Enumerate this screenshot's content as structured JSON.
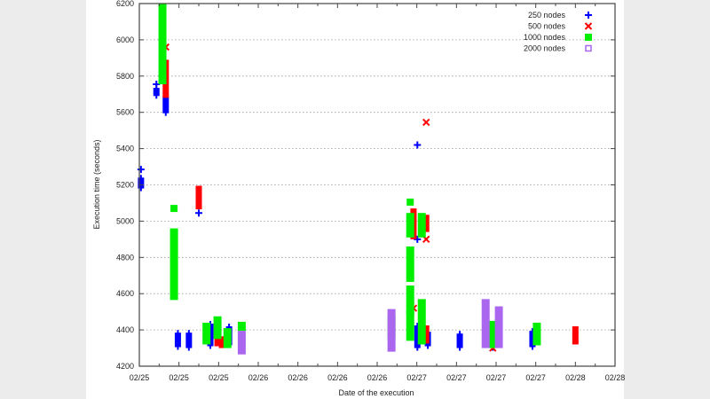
{
  "chart_data": {
    "type": "scatter",
    "title": "",
    "xlabel": "Date of the execution",
    "ylabel": "Execution time (seconds)",
    "xlim": [
      "02/25 06:00",
      "02/28 06:00"
    ],
    "ylim": [
      4200,
      6200
    ],
    "x_tick_step_hours": 6,
    "x_tick_labels": [
      "02/25",
      "02/25",
      "02/25",
      "02/26",
      "02/26",
      "02/26",
      "02/26",
      "02/27",
      "02/27",
      "02/27",
      "02/27",
      "02/28",
      "02/28"
    ],
    "y_ticks": [
      4200,
      4400,
      4600,
      4800,
      5000,
      5200,
      5400,
      5600,
      5800,
      6000,
      6200
    ],
    "grid": "horizontal dotted",
    "legend_position": "top-right",
    "series": [
      {
        "name": "250 nodes",
        "color": "#0000ff",
        "marker": "plus",
        "points": [
          {
            "x": "02/25 06:15",
            "y": 5285
          },
          {
            "x": "02/25 06:15",
            "y_min": 5180,
            "y_max": 5240
          },
          {
            "x": "02/25 08:35",
            "y": 5755
          },
          {
            "x": "02/25 08:35",
            "y_min": 5690,
            "y_max": 5735
          },
          {
            "x": "02/25 10:00",
            "y_min": 5595,
            "y_max": 5690
          },
          {
            "x": "02/25 11:50",
            "y_min": 4305,
            "y_max": 4385
          },
          {
            "x": "02/25 13:30",
            "y_min": 4300,
            "y_max": 4385
          },
          {
            "x": "02/25 15:00",
            "y": 5045
          },
          {
            "x": "02/25 16:45",
            "y_min": 4310,
            "y_max": 4435
          },
          {
            "x": "02/25 19:35",
            "y_min": 4315,
            "y_max": 4420
          },
          {
            "x": "02/27 00:05",
            "y": 5420
          },
          {
            "x": "02/27 00:05",
            "y": 4900
          },
          {
            "x": "02/27 00:05",
            "y_min": 4300,
            "y_max": 4425
          },
          {
            "x": "02/27 01:40",
            "y_min": 4310,
            "y_max": 4390
          },
          {
            "x": "02/27 06:30",
            "y_min": 4300,
            "y_max": 4380
          },
          {
            "x": "02/27 11:30",
            "y_min": 4300,
            "y_max": 4375
          },
          {
            "x": "02/27 17:30",
            "y_min": 4305,
            "y_max": 4395
          }
        ]
      },
      {
        "name": "500 nodes",
        "color": "#ff0000",
        "marker": "cross",
        "points": [
          {
            "x": "02/25 10:00",
            "y": 5960
          },
          {
            "x": "02/25 10:00",
            "y_min": 5680,
            "y_max": 5890
          },
          {
            "x": "02/25 15:00",
            "y_min": 5065,
            "y_max": 5195
          },
          {
            "x": "02/25 17:50",
            "y_min": 4310,
            "y_max": 4415
          },
          {
            "x": "02/25 18:30",
            "y_min": 4300,
            "y_max": 4365
          },
          {
            "x": "02/26 23:30",
            "y": 4520
          },
          {
            "x": "02/26 23:30",
            "y_min": 4900,
            "y_max": 5070
          },
          {
            "x": "02/27 01:25",
            "y": 5545
          },
          {
            "x": "02/27 01:25",
            "y": 4900
          },
          {
            "x": "02/27 01:25",
            "y_min": 4940,
            "y_max": 5035
          },
          {
            "x": "02/27 01:25",
            "y_min": 4325,
            "y_max": 4425
          },
          {
            "x": "02/27 11:30",
            "y": 4300
          },
          {
            "x": "02/28 00:00",
            "y_min": 4320,
            "y_max": 4420
          }
        ]
      },
      {
        "name": "1000 nodes",
        "color": "#00ee00",
        "marker": "filled-square",
        "points": [
          {
            "x": "02/25 09:30",
            "y_min": 5755,
            "y_max": 6200
          },
          {
            "x": "02/25 11:15",
            "y": 5070
          },
          {
            "x": "02/25 11:15",
            "y_min": 4565,
            "y_max": 4960
          },
          {
            "x": "02/25 16:10",
            "y_min": 4320,
            "y_max": 4440
          },
          {
            "x": "02/25 17:50",
            "y_min": 4350,
            "y_max": 4475
          },
          {
            "x": "02/25 19:20",
            "y_min": 4300,
            "y_max": 4410
          },
          {
            "x": "02/25 21:30",
            "y_min": 4395,
            "y_max": 4445
          },
          {
            "x": "02/26 20:10",
            "y_min": 4350,
            "y_max": 4480
          },
          {
            "x": "02/26 23:00",
            "y": 5105
          },
          {
            "x": "02/26 23:00",
            "y_min": 4910,
            "y_max": 5045
          },
          {
            "x": "02/26 23:00",
            "y_min": 4665,
            "y_max": 4860
          },
          {
            "x": "02/26 23:00",
            "y_min": 4485,
            "y_max": 4645
          },
          {
            "x": "02/26 23:00",
            "y_min": 4340,
            "y_max": 4510
          },
          {
            "x": "02/27 00:45",
            "y_min": 4910,
            "y_max": 5045
          },
          {
            "x": "02/27 00:45",
            "y_min": 4320,
            "y_max": 4570
          },
          {
            "x": "02/27 11:35",
            "y_min": 4300,
            "y_max": 4450
          },
          {
            "x": "02/27 18:10",
            "y_min": 4315,
            "y_max": 4440
          }
        ]
      },
      {
        "name": "2000 nodes",
        "color": "#aa66ee",
        "marker": "open-square",
        "points": [
          {
            "x": "02/25 21:30",
            "y_min": 4265,
            "y_max": 4395
          },
          {
            "x": "02/26 20:10",
            "y_min": 4280,
            "y_max": 4515
          },
          {
            "x": "02/27 10:25",
            "y_min": 4300,
            "y_max": 4570
          },
          {
            "x": "02/27 12:25",
            "y_min": 4300,
            "y_max": 4530
          }
        ]
      }
    ]
  }
}
